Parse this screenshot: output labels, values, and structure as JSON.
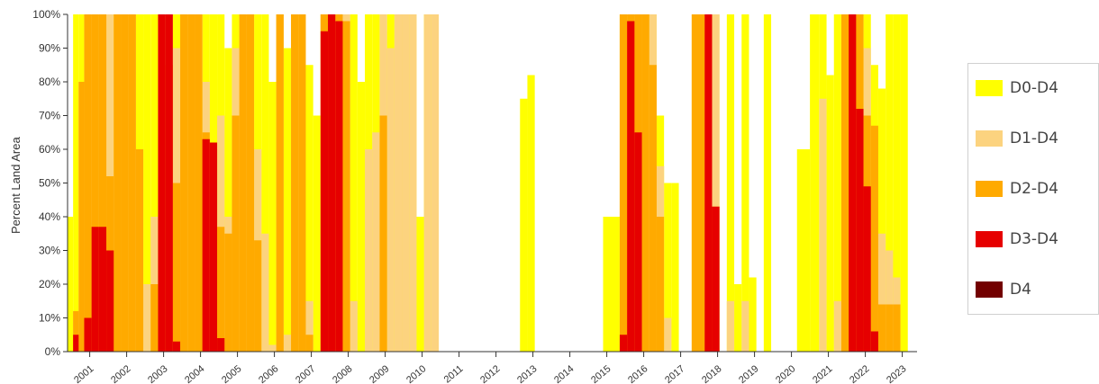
{
  "chart_data": {
    "type": "area",
    "ylabel": "Percent Land Area",
    "ylim": [
      0,
      100
    ],
    "y_ticks": [
      "0%",
      "10%",
      "20%",
      "30%",
      "40%",
      "50%",
      "60%",
      "70%",
      "80%",
      "90%",
      "100%"
    ],
    "x_ticks": [
      "2001",
      "2002",
      "2003",
      "2004",
      "2005",
      "2006",
      "2007",
      "2008",
      "2009",
      "2010",
      "2011",
      "2012",
      "2013",
      "2014",
      "2015",
      "2016",
      "2017",
      "2018",
      "2019",
      "2020",
      "2021",
      "2022",
      "2023"
    ],
    "legend_position": "right",
    "colors": {
      "D0-D4": "#FFFF00",
      "D1-D4": "#FCD37F",
      "D2-D4": "#FFAA00",
      "D3-D4": "#E60000",
      "D4": "#730000"
    },
    "x": [
      2000.4,
      2000.6,
      2000.7,
      2000.9,
      2001.1,
      2001.3,
      2001.5,
      2001.7,
      2001.9,
      2002.1,
      2002.3,
      2002.5,
      2002.7,
      2002.9,
      2003.1,
      2003.3,
      2003.5,
      2003.7,
      2003.9,
      2004.1,
      2004.3,
      2004.5,
      2004.7,
      2004.9,
      2005.1,
      2005.3,
      2005.5,
      2005.7,
      2005.9,
      2006.1,
      2006.3,
      2006.5,
      2006.7,
      2006.9,
      2007.1,
      2007.3,
      2007.5,
      2007.7,
      2007.9,
      2008.1,
      2008.3,
      2008.5,
      2008.7,
      2008.9,
      2009.1,
      2009.3,
      2009.5,
      2009.7,
      2009.9,
      2010.1,
      2010.3,
      2010.5,
      2010.7,
      2010.9,
      2011.5,
      2012.0,
      2012.5,
      2012.7,
      2012.9,
      2013.1,
      2013.5,
      2014.5,
      2015.2,
      2015.4,
      2015.6,
      2015.8,
      2016.0,
      2016.2,
      2016.4,
      2016.6,
      2016.8,
      2017.0,
      2017.5,
      2017.7,
      2017.9,
      2018.1,
      2018.3,
      2018.5,
      2018.7,
      2018.9,
      2019.1,
      2019.3,
      2019.5,
      2019.7,
      2019.9,
      2020.3,
      2020.6,
      2020.8,
      2021.0,
      2021.2,
      2021.4,
      2021.6,
      2021.8,
      2022.0,
      2022.2,
      2022.4,
      2022.6,
      2022.8,
      2023.0
    ],
    "series": [
      {
        "name": "D0-D4",
        "values": [
          40,
          100,
          100,
          100,
          100,
          100,
          100,
          100,
          100,
          100,
          100,
          100,
          100,
          100,
          100,
          100,
          100,
          100,
          100,
          100,
          100,
          100,
          90,
          100,
          100,
          100,
          100,
          100,
          80,
          100,
          90,
          100,
          100,
          85,
          70,
          100,
          100,
          100,
          100,
          100,
          80,
          100,
          100,
          95,
          100,
          100,
          100,
          100,
          40,
          100,
          100,
          0,
          0,
          0,
          0,
          0,
          0,
          75,
          82,
          0,
          0,
          0,
          40,
          100,
          100,
          100,
          100,
          100,
          70,
          50,
          50,
          0,
          100,
          100,
          100,
          0,
          100,
          20,
          100,
          22,
          0,
          100,
          0,
          0,
          0,
          60,
          100,
          100,
          82,
          100,
          100,
          100,
          100,
          100,
          85,
          78,
          100,
          100,
          100
        ]
      },
      {
        "name": "D1-D4",
        "values": [
          0,
          12,
          80,
          100,
          100,
          100,
          100,
          100,
          100,
          100,
          60,
          20,
          40,
          100,
          100,
          90,
          100,
          100,
          100,
          80,
          60,
          70,
          40,
          90,
          100,
          100,
          60,
          35,
          2,
          100,
          5,
          100,
          100,
          15,
          0,
          100,
          100,
          100,
          100,
          15,
          0,
          60,
          65,
          100,
          90,
          100,
          100,
          100,
          0,
          100,
          100,
          0,
          0,
          0,
          0,
          0,
          0,
          0,
          0,
          0,
          0,
          0,
          0,
          100,
          100,
          100,
          100,
          100,
          55,
          10,
          0,
          0,
          100,
          100,
          100,
          0,
          15,
          0,
          15,
          0,
          0,
          0,
          0,
          0,
          0,
          0,
          0,
          75,
          0,
          15,
          100,
          100,
          100,
          90,
          40,
          35,
          30,
          22,
          0
        ]
      },
      {
        "name": "D2-D4",
        "values": [
          0,
          12,
          80,
          100,
          100,
          100,
          52,
          100,
          100,
          100,
          60,
          0,
          20,
          100,
          85,
          50,
          100,
          100,
          100,
          65,
          60,
          37,
          35,
          70,
          100,
          100,
          33,
          0,
          0,
          100,
          0,
          100,
          100,
          5,
          0,
          100,
          100,
          100,
          98,
          0,
          0,
          0,
          0,
          70,
          0,
          0,
          0,
          0,
          0,
          0,
          0,
          0,
          0,
          0,
          0,
          0,
          0,
          0,
          0,
          0,
          0,
          0,
          0,
          100,
          100,
          100,
          100,
          85,
          40,
          0,
          0,
          0,
          100,
          100,
          43,
          0,
          0,
          0,
          0,
          0,
          0,
          0,
          0,
          0,
          0,
          0,
          0,
          0,
          0,
          0,
          100,
          100,
          100,
          70,
          67,
          14,
          14,
          14,
          0
        ]
      },
      {
        "name": "D3-D4",
        "values": [
          0,
          5,
          0,
          10,
          37,
          37,
          30,
          0,
          0,
          0,
          0,
          0,
          0,
          100,
          100,
          3,
          0,
          0,
          0,
          63,
          62,
          4,
          0,
          0,
          0,
          0,
          0,
          0,
          0,
          0,
          0,
          0,
          0,
          0,
          0,
          95,
          100,
          98,
          0,
          0,
          0,
          0,
          0,
          0,
          0,
          0,
          0,
          0,
          0,
          0,
          0,
          0,
          0,
          0,
          0,
          0,
          0,
          0,
          0,
          0,
          0,
          0,
          0,
          5,
          98,
          65,
          0,
          0,
          0,
          0,
          0,
          0,
          0,
          100,
          43,
          0,
          0,
          0,
          0,
          0,
          0,
          0,
          0,
          0,
          0,
          0,
          0,
          0,
          0,
          0,
          0,
          100,
          72,
          49,
          6,
          0,
          0,
          0,
          0
        ]
      },
      {
        "name": "D4",
        "values": [
          0,
          0,
          0,
          0,
          0,
          0,
          0,
          0,
          0,
          0,
          0,
          0,
          0,
          0,
          0,
          0,
          0,
          0,
          0,
          0,
          0,
          0,
          0,
          0,
          0,
          0,
          0,
          0,
          0,
          0,
          0,
          0,
          0,
          0,
          0,
          0,
          0,
          0,
          0,
          0,
          0,
          0,
          0,
          0,
          0,
          0,
          0,
          0,
          0,
          0,
          0,
          0,
          0,
          0,
          0,
          0,
          0,
          0,
          0,
          0,
          0,
          0,
          0,
          0,
          0,
          0,
          0,
          0,
          0,
          0,
          0,
          0,
          0,
          0,
          0,
          0,
          0,
          0,
          0,
          0,
          0,
          0,
          0,
          0,
          0,
          0,
          0,
          0,
          0,
          0,
          0,
          0,
          0,
          0,
          0,
          0,
          0,
          0,
          0
        ]
      }
    ]
  },
  "legend": [
    {
      "label": "D0-D4",
      "color": "#FFFF00"
    },
    {
      "label": "D1-D4",
      "color": "#FCD37F"
    },
    {
      "label": "D2-D4",
      "color": "#FFAA00"
    },
    {
      "label": "D3-D4",
      "color": "#E60000"
    },
    {
      "label": "D4",
      "color": "#730000"
    }
  ]
}
